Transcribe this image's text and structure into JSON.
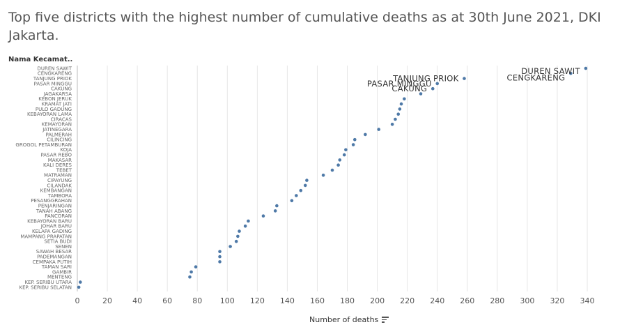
{
  "title": "Top five districts with the highest number of cumulative deaths as at 30th June 2021,  DKI Jakarta.",
  "chart_data": {
    "type": "scatter",
    "title": "Top five districts with the highest number of cumulative deaths as at 30th June 2021,  DKI Jakarta.",
    "row_header": "Nama Kecamat..",
    "xlabel": "Number of deaths",
    "xlim": [
      0,
      350
    ],
    "xticks": [
      "0",
      "20",
      "40",
      "60",
      "80",
      "100",
      "120",
      "140",
      "160",
      "180",
      "200",
      "220",
      "240",
      "260",
      "280",
      "300",
      "320",
      "340"
    ],
    "grid": "vertical",
    "point_color": "#4e79a7",
    "categories": [
      "DUREN SAWIT",
      "CENGKARENG",
      "TANJUNG PRIOK",
      "PASAR MINGGU",
      "CAKUNG",
      "JAGAKARSA",
      "KEBON JERUK",
      "KRAMAT JATI",
      "PULO GADUNG",
      "KEBAYORAN LAMA",
      "CIRACAS",
      "KEMAYORAN",
      "JATINEGARA",
      "PALMERAH",
      "CILINCING",
      "GROGOL PETAMBURAN",
      "KOJA",
      "PASAR REBO",
      "MAKASAR",
      "KALI DERES",
      "TEBET",
      "MATRAMAN",
      "CIPAYUNG",
      "CILANDAK",
      "KEMBANGAN",
      "TAMBORA",
      "PESANGGRAHAN",
      "PENJARINGAN",
      "TANAH ABANG",
      "PANCORAN",
      "KEBAYORAN BARU",
      "JOHAR BARU",
      "KELAPA GADING",
      "MAMPANG PRAPATAN",
      "SETIA BUDI",
      "SENEN",
      "SAWAH BESAR",
      "PADEMANGAN",
      "CEMPAKA PUTIH",
      "TAMAN SARI",
      "GAMBIR",
      "MENTENG",
      "KEP. SERIBU UTARA",
      "KEP. SERIBU SELATAN"
    ],
    "values": [
      339,
      329,
      258,
      240,
      237,
      229,
      218,
      216,
      215,
      214,
      212,
      210,
      201,
      192,
      185,
      184,
      179,
      178,
      175,
      174,
      170,
      164,
      153,
      152,
      149,
      146,
      143,
      133,
      132,
      124,
      114,
      112,
      108,
      107,
      106,
      102,
      95,
      95,
      95,
      79,
      76,
      75,
      2,
      1
    ],
    "annotations": [
      "DUREN SAWIT",
      "CENGKARENG",
      "TANJUNG PRIOK",
      "PASAR MINGGU",
      "CAKUNG"
    ]
  }
}
